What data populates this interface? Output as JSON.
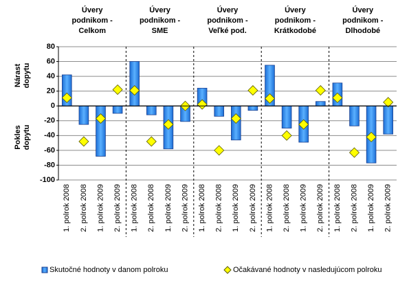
{
  "chart_data": {
    "type": "bar",
    "groups": [
      [
        "Úvery",
        "podnikom -",
        "Celkom"
      ],
      [
        "Úvery",
        "podnikom -",
        "SME"
      ],
      [
        "Úvery",
        "podnikom -",
        "Veľké pod."
      ],
      [
        "Úvery",
        "podnikom -",
        "Krátkodobé"
      ],
      [
        "Úvery",
        "podnikom -",
        "Dlhodobé"
      ]
    ],
    "categories": [
      "1. polrok 2008",
      "2. polrok 2008",
      "1. polrok 2009",
      "2. polrok 2009",
      "1. polrok 2008",
      "2. polrok 2008",
      "1. polrok 2009",
      "2. polrok 2009",
      "1. polrok 2008",
      "2. polrok 2008",
      "1. polrok 2009",
      "2. polrok 2009",
      "1. polrok 2008",
      "2. polrok 2008",
      "1. polrok 2009",
      "2. polrok 2009",
      "1. polrok 2008",
      "2. polrok 2008",
      "1. polrok 2009",
      "2. polrok 2009"
    ],
    "y_axis_labels": [
      [
        "Nárast",
        "dopytu"
      ],
      [
        "Pokles",
        "dopytu"
      ]
    ],
    "series": [
      {
        "name": "Skutočné hodnoty v danom polroku",
        "type": "bar",
        "color": "#3d9cf0",
        "values": [
          42,
          -25,
          -68,
          -10,
          60,
          -12,
          -58,
          -21,
          24,
          -14,
          -46,
          -6,
          55,
          -30,
          -49,
          6,
          31,
          -27,
          -77,
          -38
        ]
      },
      {
        "name": "Očakávané hodnoty v nasledujúcom polroku",
        "type": "scatter",
        "color": "#ffff00",
        "values": [
          11,
          -48,
          -17,
          22,
          21,
          -48,
          -25,
          0,
          2,
          -60,
          -17,
          21,
          10,
          -40,
          -25,
          21,
          11,
          -63,
          -42,
          5
        ]
      }
    ],
    "ylim": [
      -100,
      80
    ],
    "yticks": [
      -100,
      -80,
      -60,
      -40,
      -20,
      0,
      20,
      40,
      60,
      80
    ],
    "grid": true
  }
}
